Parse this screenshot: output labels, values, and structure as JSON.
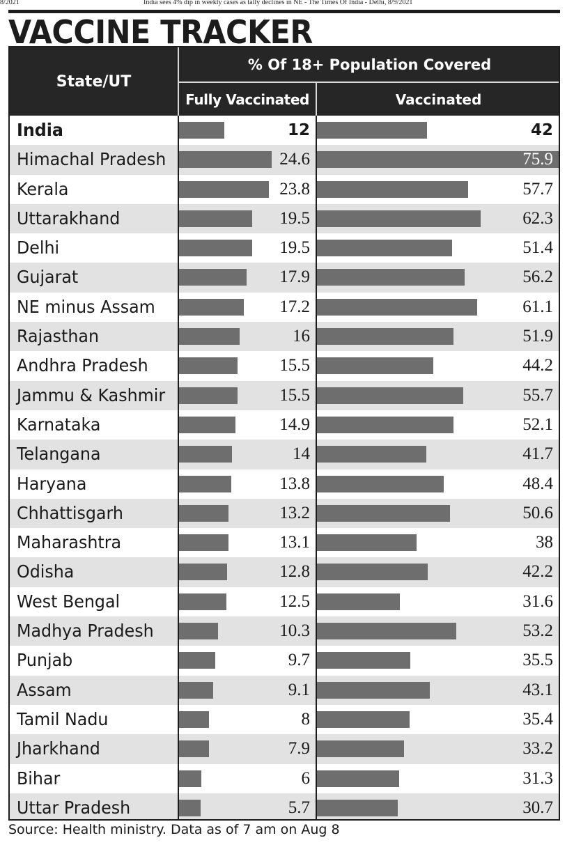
{
  "print_header": {
    "left": "8/2021",
    "center": "India sees 4% dip in weekly cases as tally declines in NE - The Times Of India - Delhi, 8/9/2021"
  },
  "title": "VACCINE TRACKER",
  "source": "Source: Health ministry. Data as of 7 am on Aug 8",
  "colors": {
    "bar": "#6e6e6e",
    "header_bg": "#262626",
    "shade": "#e2e2e2"
  },
  "chart_data": {
    "type": "table",
    "title": "VACCINE TRACKER",
    "column_headers": {
      "category": "State/UT",
      "group": "% Of 18+ Population Covered",
      "fully": "Fully Vaccinated",
      "vaccinated": "Vaccinated"
    },
    "scale_max": {
      "fully": 24.6,
      "vaccinated": 75.9
    },
    "rows": [
      {
        "name": "India",
        "fully": "12",
        "vaccinated": "42"
      },
      {
        "name": "Himachal Pradesh",
        "fully": "24.6",
        "vaccinated": "75.9"
      },
      {
        "name": "Kerala",
        "fully": "23.8",
        "vaccinated": "57.7"
      },
      {
        "name": "Uttarakhand",
        "fully": "19.5",
        "vaccinated": "62.3"
      },
      {
        "name": "Delhi",
        "fully": "19.5",
        "vaccinated": "51.4"
      },
      {
        "name": "Gujarat",
        "fully": "17.9",
        "vaccinated": "56.2"
      },
      {
        "name": "NE minus Assam",
        "fully": "17.2",
        "vaccinated": "61.1"
      },
      {
        "name": "Rajasthan",
        "fully": "16",
        "vaccinated": "51.9"
      },
      {
        "name": "Andhra Pradesh",
        "fully": "15.5",
        "vaccinated": "44.2"
      },
      {
        "name": "Jammu & Kashmir",
        "fully": "15.5",
        "vaccinated": "55.7"
      },
      {
        "name": "Karnataka",
        "fully": "14.9",
        "vaccinated": "52.1"
      },
      {
        "name": "Telangana",
        "fully": "14",
        "vaccinated": "41.7"
      },
      {
        "name": "Haryana",
        "fully": "13.8",
        "vaccinated": "48.4"
      },
      {
        "name": "Chhattisgarh",
        "fully": "13.2",
        "vaccinated": "50.6"
      },
      {
        "name": "Maharashtra",
        "fully": "13.1",
        "vaccinated": "38"
      },
      {
        "name": "Odisha",
        "fully": "12.8",
        "vaccinated": "42.2"
      },
      {
        "name": "West Bengal",
        "fully": "12.5",
        "vaccinated": "31.6"
      },
      {
        "name": "Madhya Pradesh",
        "fully": "10.3",
        "vaccinated": "53.2"
      },
      {
        "name": "Punjab",
        "fully": "9.7",
        "vaccinated": "35.5"
      },
      {
        "name": "Assam",
        "fully": "9.1",
        "vaccinated": "43.1"
      },
      {
        "name": "Tamil Nadu",
        "fully": "8",
        "vaccinated": "35.4"
      },
      {
        "name": "Jharkhand",
        "fully": "7.9",
        "vaccinated": "33.2"
      },
      {
        "name": "Bihar",
        "fully": "6",
        "vaccinated": "31.3"
      },
      {
        "name": "Uttar Pradesh",
        "fully": "5.7",
        "vaccinated": "30.7"
      }
    ]
  }
}
